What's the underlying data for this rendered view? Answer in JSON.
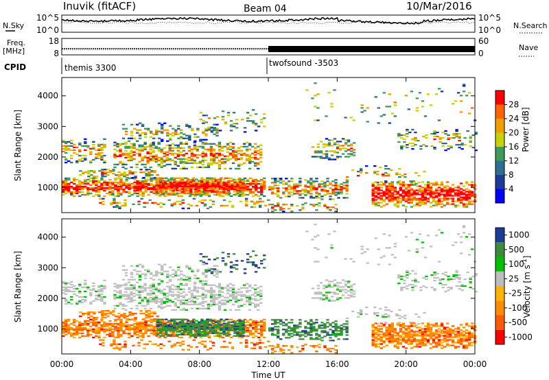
{
  "header": {
    "title": "Inuvik (fitACF)",
    "beam": "Beam 04",
    "date": "10/Mar/2016"
  },
  "labels": {
    "nsky": "N.Sky",
    "freq": "Freq.",
    "freq_unit": "[MHz]",
    "cpid": "CPID",
    "nsearch": "N.Search",
    "nave": "Nave",
    "nsky_ticks": [
      "10^5",
      "10^0"
    ],
    "nsearch_ticks": [
      "10^5",
      "10^0"
    ],
    "freq_ticks": [
      "18",
      "8"
    ],
    "nave_ticks": [
      "60",
      "0"
    ]
  },
  "cpid": {
    "modes": [
      {
        "label": "themis 3300",
        "start": "00:00"
      },
      {
        "label": "twofsound -3503",
        "start": "12:00"
      }
    ]
  },
  "colors": {
    "power": [
      "#0000ff",
      "#1e3c96",
      "#2e6e8e",
      "#3c9a5a",
      "#c8d200",
      "#f0a000",
      "#ff6400",
      "#ff0000"
    ],
    "velocity": [
      "#ff0000",
      "#ff5a00",
      "#ff8c00",
      "#ffb400",
      "#bdbdbd",
      "#00c000",
      "#3c8c3c",
      "#1e3c96"
    ],
    "ground_scatter": "#c0c0c0"
  },
  "chart_data": [
    {
      "type": "heatmap",
      "name": "power-panel",
      "xlabel": "",
      "ylabel": "Slant Range [km]",
      "xlim": [
        0,
        24
      ],
      "ylim": [
        180,
        4600
      ],
      "yticks": [
        1000,
        2000,
        3000,
        4000
      ],
      "colorbar": {
        "label": "Power [dB]",
        "ticks": [
          "4",
          "8",
          "12",
          "16",
          "20",
          "24",
          "28"
        ],
        "range": [
          0,
          32
        ]
      }
    },
    {
      "type": "heatmap",
      "name": "velocity-panel",
      "xlabel": "Time UT",
      "ylabel": "Slant Range [km]",
      "xlim": [
        0,
        24
      ],
      "ylim": [
        180,
        4600
      ],
      "xticks": [
        "00:00",
        "04:00",
        "08:00",
        "12:00",
        "16:00",
        "20:00",
        "00:00"
      ],
      "yticks": [
        1000,
        2000,
        3000,
        4000
      ],
      "colorbar": {
        "label": "Velocity [m s^-1]",
        "ticks": [
          "1000",
          "500",
          "100",
          "25",
          "-25",
          "-100",
          "-500",
          "-1000"
        ]
      }
    }
  ]
}
